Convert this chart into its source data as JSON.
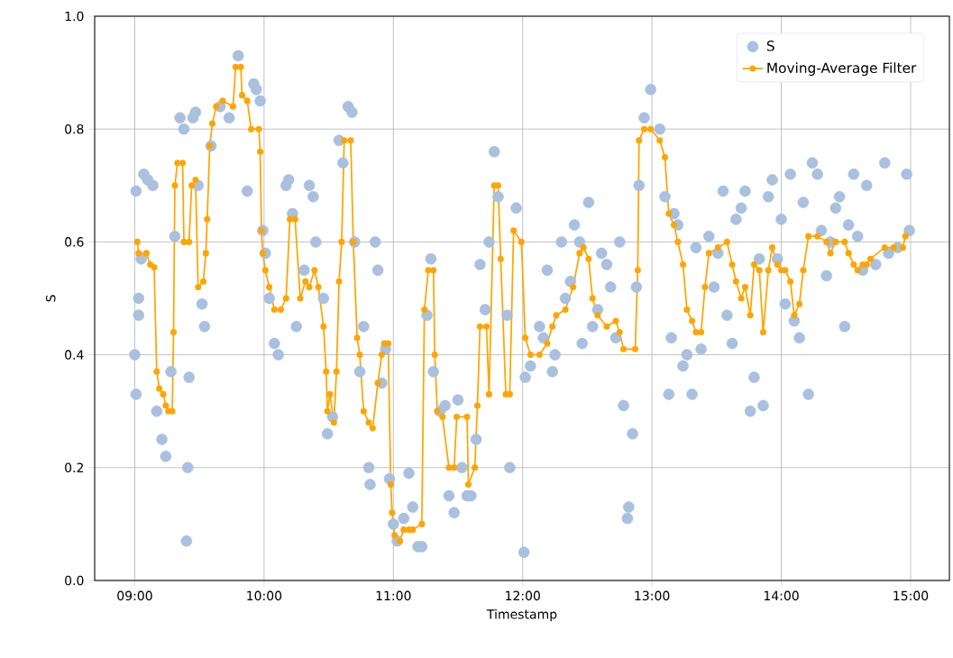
{
  "chart_data": {
    "type": "scatter",
    "xlabel": "Timestamp",
    "ylabel": "S",
    "xlim": [
      8.69,
      15.3
    ],
    "ylim": [
      0,
      1
    ],
    "xticks": [
      {
        "value": 9,
        "label": "09:00"
      },
      {
        "value": 10,
        "label": "10:00"
      },
      {
        "value": 11,
        "label": "11:00"
      },
      {
        "value": 12,
        "label": "12:00"
      },
      {
        "value": 13,
        "label": "13:00"
      },
      {
        "value": 14,
        "label": "14:00"
      },
      {
        "value": 15,
        "label": "15:00"
      }
    ],
    "yticks": [
      {
        "value": 0,
        "label": "0.0"
      },
      0.2,
      0.4,
      0.6,
      0.8,
      {
        "value": 1,
        "label": "1.0"
      }
    ],
    "grid": true,
    "legend": "top right",
    "marker": "circle",
    "series": [
      {
        "name": "S",
        "color": "#a9c0de",
        "x": [
          9.01,
          9.0,
          9.01,
          9.03,
          9.07,
          9.1,
          9.14,
          9.05,
          9.03,
          9.17,
          9.21,
          9.24,
          9.28,
          9.31,
          9.35,
          9.38,
          9.42,
          9.41,
          9.4,
          9.45,
          9.47,
          9.49,
          9.52,
          9.54,
          9.59,
          9.66,
          9.73,
          9.8,
          9.87,
          9.92,
          9.94,
          9.97,
          9.99,
          10.01,
          10.04,
          10.08,
          10.11,
          10.17,
          10.19,
          10.22,
          10.25,
          10.31,
          10.35,
          10.38,
          10.4,
          10.46,
          10.49,
          10.53,
          10.58,
          10.61,
          10.65,
          10.68,
          10.7,
          10.74,
          10.77,
          10.81,
          10.82,
          10.86,
          10.88,
          10.91,
          10.94,
          10.97,
          11.0,
          11.03,
          11.08,
          11.12,
          11.15,
          11.19,
          11.22,
          11.26,
          11.29,
          11.31,
          11.36,
          11.4,
          11.43,
          11.47,
          11.5,
          11.53,
          11.57,
          11.6,
          11.64,
          11.67,
          11.71,
          11.74,
          11.78,
          11.81,
          11.88,
          11.9,
          11.95,
          12.01,
          12.02,
          12.06,
          12.13,
          12.16,
          12.19,
          12.23,
          12.25,
          12.3,
          12.33,
          12.37,
          12.4,
          12.44,
          12.46,
          12.51,
          12.54,
          12.58,
          12.61,
          12.65,
          12.68,
          12.72,
          12.75,
          12.78,
          12.81,
          12.82,
          12.85,
          12.88,
          12.9,
          12.94,
          12.99,
          13.06,
          13.1,
          13.13,
          13.15,
          13.17,
          13.2,
          13.24,
          13.27,
          13.31,
          13.34,
          13.38,
          13.44,
          13.48,
          13.51,
          13.55,
          13.58,
          13.62,
          13.65,
          13.69,
          13.72,
          13.76,
          13.79,
          13.83,
          13.86,
          13.9,
          13.93,
          13.97,
          14.0,
          14.03,
          14.07,
          14.1,
          14.14,
          14.17,
          14.21,
          14.24,
          14.28,
          14.31,
          14.35,
          14.38,
          14.42,
          14.45,
          14.49,
          14.52,
          14.56,
          14.59,
          14.63,
          14.66,
          14.73,
          14.8,
          14.83,
          14.9,
          14.97,
          14.99
        ],
        "values": [
          0.69,
          0.4,
          0.33,
          0.5,
          0.72,
          0.71,
          0.7,
          0.57,
          0.47,
          0.3,
          0.25,
          0.22,
          0.37,
          0.61,
          0.82,
          0.8,
          0.36,
          0.2,
          0.07,
          0.82,
          0.83,
          0.7,
          0.49,
          0.45,
          0.77,
          0.84,
          0.82,
          0.93,
          0.69,
          0.88,
          0.87,
          0.85,
          0.62,
          0.58,
          0.5,
          0.42,
          0.4,
          0.7,
          0.71,
          0.65,
          0.45,
          0.55,
          0.7,
          0.68,
          0.6,
          0.5,
          0.26,
          0.29,
          0.78,
          0.74,
          0.84,
          0.83,
          0.6,
          0.37,
          0.45,
          0.2,
          0.17,
          0.6,
          0.55,
          0.35,
          0.41,
          0.18,
          0.1,
          0.07,
          0.11,
          0.19,
          0.13,
          0.06,
          0.06,
          0.47,
          0.57,
          0.37,
          0.3,
          0.31,
          0.15,
          0.12,
          0.32,
          0.2,
          0.15,
          0.15,
          0.25,
          0.56,
          0.48,
          0.6,
          0.76,
          0.68,
          0.47,
          0.2,
          0.66,
          0.05,
          0.36,
          0.38,
          0.45,
          0.43,
          0.55,
          0.37,
          0.4,
          0.6,
          0.5,
          0.53,
          0.63,
          0.6,
          0.42,
          0.67,
          0.45,
          0.48,
          0.58,
          0.56,
          0.52,
          0.43,
          0.6,
          0.31,
          0.11,
          0.13,
          0.26,
          0.52,
          0.7,
          0.82,
          0.87,
          0.8,
          0.68,
          0.33,
          0.43,
          0.65,
          0.63,
          0.38,
          0.4,
          0.33,
          0.59,
          0.41,
          0.61,
          0.52,
          0.58,
          0.69,
          0.47,
          0.42,
          0.64,
          0.66,
          0.69,
          0.3,
          0.36,
          0.57,
          0.31,
          0.68,
          0.71,
          0.57,
          0.64,
          0.49,
          0.72,
          0.46,
          0.43,
          0.67,
          0.33,
          0.74,
          0.72,
          0.62,
          0.54,
          0.6,
          0.66,
          0.68,
          0.45,
          0.63,
          0.72,
          0.61,
          0.55,
          0.7,
          0.56,
          0.74,
          0.58,
          0.59,
          0.72,
          0.62
        ]
      },
      {
        "name": "Moving-Average Filter",
        "type": "line",
        "color": "#ffa500",
        "x": [
          9.02,
          9.03,
          9.09,
          9.12,
          9.15,
          9.17,
          9.19,
          9.22,
          9.24,
          9.26,
          9.29,
          9.3,
          9.31,
          9.33,
          9.37,
          9.38,
          9.42,
          9.44,
          9.47,
          9.49,
          9.53,
          9.55,
          9.56,
          9.58,
          9.6,
          9.63,
          9.68,
          9.76,
          9.78,
          9.82,
          9.83,
          9.87,
          9.9,
          9.96,
          9.97,
          9.98,
          9.99,
          10.01,
          10.04,
          10.08,
          10.13,
          10.17,
          10.2,
          10.24,
          10.28,
          10.32,
          10.35,
          10.39,
          10.42,
          10.46,
          10.48,
          10.49,
          10.51,
          10.54,
          10.56,
          10.58,
          10.6,
          10.62,
          10.67,
          10.69,
          10.72,
          10.74,
          10.77,
          10.81,
          10.84,
          10.88,
          10.91,
          10.93,
          10.96,
          10.98,
          10.99,
          11.01,
          11.05,
          11.08,
          11.12,
          11.15,
          11.22,
          11.24,
          11.27,
          11.31,
          11.32,
          11.34,
          11.38,
          11.43,
          11.47,
          11.49,
          11.57,
          11.58,
          11.63,
          11.65,
          11.67,
          11.72,
          11.74,
          11.78,
          11.81,
          11.83,
          11.87,
          11.9,
          11.93,
          11.99,
          12.02,
          12.06,
          12.13,
          12.19,
          12.23,
          12.26,
          12.33,
          12.39,
          12.44,
          12.47,
          12.51,
          12.54,
          12.58,
          12.65,
          12.72,
          12.75,
          12.78,
          12.87,
          12.89,
          12.9,
          12.94,
          12.99,
          13.06,
          13.1,
          13.13,
          13.17,
          13.2,
          13.24,
          13.27,
          13.31,
          13.34,
          13.38,
          13.41,
          13.44,
          13.51,
          13.58,
          13.62,
          13.65,
          13.69,
          13.72,
          13.76,
          13.79,
          13.83,
          13.86,
          13.9,
          13.93,
          13.97,
          14.0,
          14.03,
          14.07,
          14.1,
          14.14,
          14.17,
          14.21,
          14.28,
          14.35,
          14.38,
          14.42,
          14.49,
          14.52,
          14.56,
          14.59,
          14.63,
          14.66,
          14.69,
          14.8,
          14.87,
          14.94,
          14.96
        ],
        "values": [
          0.6,
          0.58,
          0.58,
          0.56,
          0.555,
          0.37,
          0.34,
          0.33,
          0.31,
          0.3,
          0.3,
          0.44,
          0.7,
          0.74,
          0.74,
          0.6,
          0.6,
          0.7,
          0.71,
          0.52,
          0.53,
          0.58,
          0.64,
          0.77,
          0.81,
          0.84,
          0.85,
          0.84,
          0.91,
          0.91,
          0.86,
          0.85,
          0.8,
          0.8,
          0.76,
          0.62,
          0.58,
          0.55,
          0.52,
          0.48,
          0.48,
          0.5,
          0.64,
          0.64,
          0.5,
          0.53,
          0.52,
          0.55,
          0.52,
          0.45,
          0.37,
          0.3,
          0.33,
          0.28,
          0.37,
          0.53,
          0.6,
          0.78,
          0.78,
          0.6,
          0.43,
          0.4,
          0.3,
          0.28,
          0.27,
          0.35,
          0.4,
          0.42,
          0.42,
          0.17,
          0.12,
          0.08,
          0.07,
          0.09,
          0.09,
          0.09,
          0.1,
          0.48,
          0.55,
          0.55,
          0.4,
          0.3,
          0.29,
          0.2,
          0.2,
          0.29,
          0.29,
          0.17,
          0.2,
          0.31,
          0.45,
          0.45,
          0.33,
          0.7,
          0.7,
          0.57,
          0.33,
          0.33,
          0.62,
          0.6,
          0.43,
          0.4,
          0.4,
          0.42,
          0.45,
          0.47,
          0.48,
          0.52,
          0.58,
          0.59,
          0.57,
          0.5,
          0.47,
          0.45,
          0.46,
          0.44,
          0.41,
          0.41,
          0.55,
          0.78,
          0.8,
          0.8,
          0.78,
          0.75,
          0.65,
          0.63,
          0.6,
          0.56,
          0.48,
          0.46,
          0.44,
          0.44,
          0.52,
          0.58,
          0.59,
          0.6,
          0.56,
          0.53,
          0.5,
          0.52,
          0.47,
          0.56,
          0.55,
          0.44,
          0.55,
          0.59,
          0.56,
          0.55,
          0.55,
          0.53,
          0.47,
          0.49,
          0.55,
          0.61,
          0.61,
          0.6,
          0.58,
          0.6,
          0.6,
          0.58,
          0.56,
          0.55,
          0.56,
          0.56,
          0.57,
          0.59,
          0.59,
          0.59,
          0.61
        ]
      }
    ]
  }
}
